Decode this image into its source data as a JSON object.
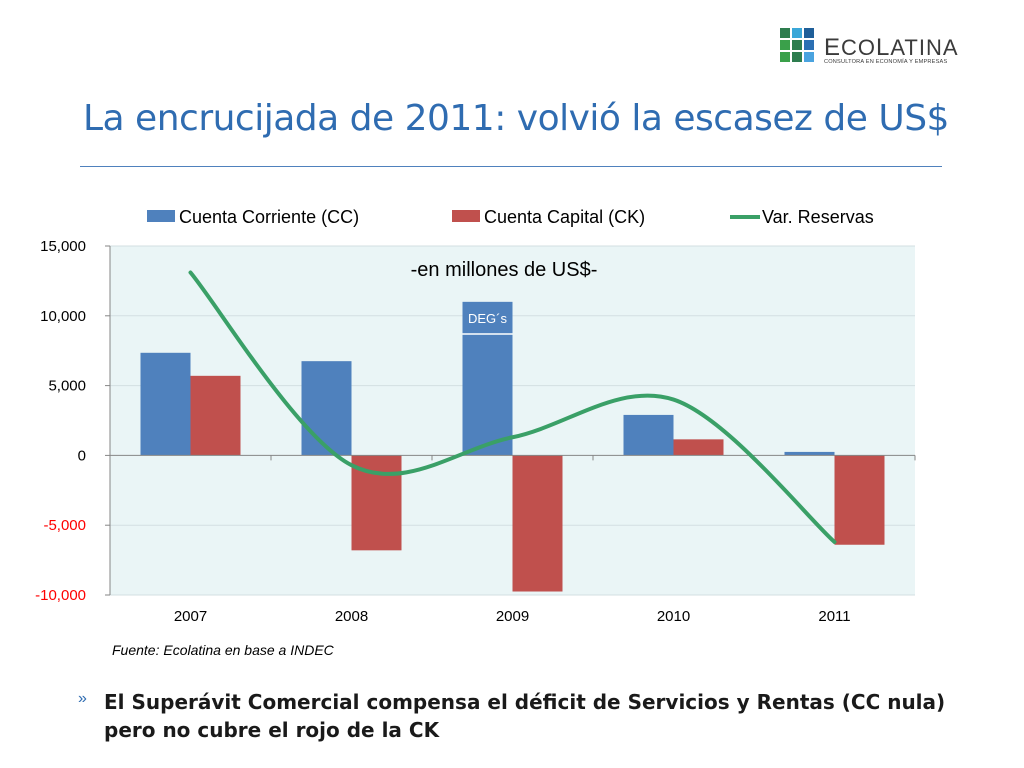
{
  "logo": {
    "name_first": "E",
    "name_mid": "CO",
    "name_l": "L",
    "name_rest": "ATINA",
    "tagline": "CONSULTORA EN ECONOMÍA Y EMPRESAS",
    "grid_colors": [
      "#2e7d4f",
      "#3aa7d8",
      "#1f5f99",
      "#3aa04a",
      "#2e7d4f",
      "#2b6fb3",
      "#3aa04a",
      "#2e7d4f",
      "#4aa3df"
    ]
  },
  "title": "La encrucijada de 2011: volvió la escasez de US$",
  "chart_data": {
    "type": "bar",
    "subtitle": "-en millones de US$-",
    "categories": [
      "2007",
      "2008",
      "2009",
      "2010",
      "2011"
    ],
    "series": [
      {
        "name": "Cuenta Corriente (CC)",
        "type": "bar",
        "color": "#4f81bd",
        "values": [
          7350,
          6750,
          11000,
          2900,
          250
        ]
      },
      {
        "name": "Cuenta Capital (CK)",
        "type": "bar",
        "color": "#c0504d",
        "values": [
          5700,
          -6800,
          -9750,
          1150,
          -6400
        ]
      },
      {
        "name": "Var. Reservas",
        "type": "line",
        "color": "#3aa067",
        "values": [
          13100,
          -700,
          1300,
          4000,
          -6200
        ]
      }
    ],
    "annotation": {
      "text": "DEG´s",
      "category": "2009",
      "from": 8700,
      "to": 11000
    },
    "ylim": [
      -10000,
      15000
    ],
    "yticks": [
      {
        "value": 15000,
        "label": "15,000",
        "color": "#000000"
      },
      {
        "value": 10000,
        "label": "10,000",
        "color": "#000000"
      },
      {
        "value": 5000,
        "label": "5,000",
        "color": "#000000"
      },
      {
        "value": 0,
        "label": "0",
        "color": "#000000"
      },
      {
        "value": -5000,
        "label": "-5,000",
        "color": "#ff0000"
      },
      {
        "value": -10000,
        "label": "-10,000",
        "color": "#ff0000"
      }
    ],
    "grid": true,
    "legend_position": "top",
    "plot_background": "#eaf5f6"
  },
  "source": "Fuente: Ecolatina en base a INDEC",
  "bullet": {
    "marker": "»",
    "text": "El Superávit Comercial compensa el déficit de Servicios y Rentas (CC nula) pero no cubre el rojo de la CK"
  }
}
